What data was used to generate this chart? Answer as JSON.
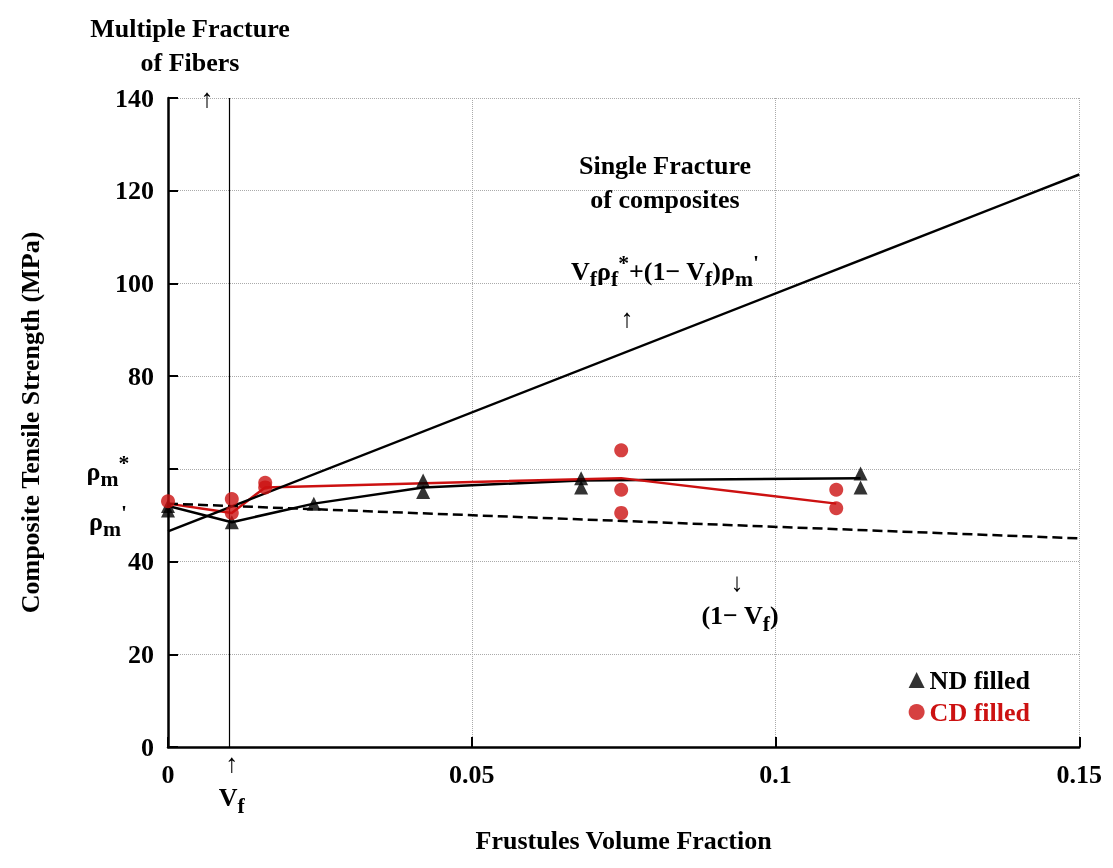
{
  "chart_data": {
    "type": "scatter",
    "xlabel": "Frustules Volume Fraction",
    "ylabel": "Composite Tensile Strength (MPa)",
    "xlim": [
      0,
      0.15
    ],
    "xticks": [
      0,
      0.05,
      0.1,
      0.15
    ],
    "ylim": [
      0,
      140
    ],
    "yticks": [
      0,
      20,
      40,
      {
        "value": 60,
        "label": null
      },
      80,
      100,
      120,
      140
    ],
    "grid": true,
    "legend": "bottom right",
    "series": [
      {
        "name": "ND filled",
        "marker": "triangle",
        "color": "#000000",
        "x": [
          0,
          0,
          0.0105,
          0.024,
          0.042,
          0.042,
          0.068,
          0.068,
          0.114,
          0.114
        ],
        "values": [
          52,
          51,
          48.5,
          52.5,
          57.5,
          55,
          58,
          56,
          59,
          56
        ]
      },
      {
        "name": "CD filled",
        "marker": "circle",
        "color": "#cc1111",
        "x": [
          0,
          0.0105,
          0.0105,
          0.016,
          0.016,
          0.0746,
          0.0746,
          0.0746,
          0.11,
          0.11
        ],
        "values": [
          53,
          53.5,
          50.5,
          57,
          56,
          64,
          55.5,
          50.5,
          55.5,
          51.5
        ]
      },
      {
        "type": "line",
        "marker": "none",
        "line_style": "solid",
        "color": "#000000",
        "x": [
          0,
          0.0105,
          0.024,
          0.042,
          0.068,
          0.114
        ],
        "values": [
          52,
          48.5,
          52.5,
          56,
          57.5,
          58
        ]
      },
      {
        "type": "line",
        "marker": "none",
        "line_style": "solid",
        "color": "#cc1111",
        "x": [
          0,
          0.0105,
          0.016,
          0.0746,
          0.11
        ],
        "values": [
          52.5,
          50.5,
          56,
          58,
          52.5
        ]
      },
      {
        "type": "line",
        "marker": "none",
        "line_style": "solid",
        "color": "#000000",
        "x": [
          0,
          0.15
        ],
        "values": [
          46.5,
          123.5
        ]
      },
      {
        "type": "line",
        "marker": "none",
        "line_style": "dashed",
        "color": "#000000",
        "x": [
          0,
          0.15
        ],
        "values": [
          52.5,
          45
        ]
      }
    ],
    "ref_lines": [
      {
        "axis": "x",
        "value": 0.0105,
        "label": "↑\nV$_{f}$",
        "color": "#000000"
      }
    ],
    "annotations": [
      "Multiple Fracture\nof Fibers",
      "↑",
      "Single Fracture\nof composites",
      "V$_{f}$ρ$_{f}$$^{*}$+(1− V$_{f}$)ρ$_{m}$$^{'}$",
      "↑",
      "↓",
      "(1− V$_{f}$)",
      "ρ$_{m}$$^{*}$",
      "ρ$_{m}$$^{'}$"
    ]
  }
}
